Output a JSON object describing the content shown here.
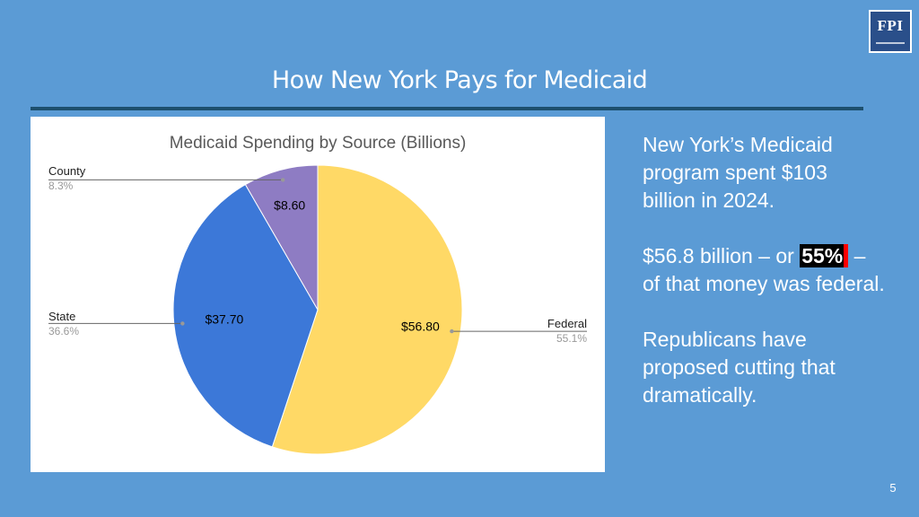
{
  "logo": {
    "text": "FPI"
  },
  "slide": {
    "title": "How New York Pays for Medicaid",
    "page_number": "5"
  },
  "body": {
    "p1": "New York’s Medicaid program spent $103 billion in 2024.",
    "p2_before": "$56.8 billion – or ",
    "p2_highlight": "55%",
    "p2_after": " – of that money was federal.",
    "p3": "Republicans have proposed cutting that dramatically."
  },
  "chart_data": {
    "type": "pie",
    "title": "Medicaid Spending by Source (Billions)",
    "slices": [
      {
        "name": "Federal",
        "value": 56.8,
        "value_label": "$56.80",
        "percent_label": "55.1%",
        "color": "#ffd966"
      },
      {
        "name": "State",
        "value": 37.7,
        "value_label": "$37.70",
        "percent_label": "36.6%",
        "color": "#3c78d8"
      },
      {
        "name": "County",
        "value": 8.6,
        "value_label": "$8.60",
        "percent_label": "8.3%",
        "color": "#8e7cc3"
      }
    ],
    "start_angle": "12 o'clock",
    "direction": "clockwise",
    "legend": "none (leader-line labels)"
  }
}
